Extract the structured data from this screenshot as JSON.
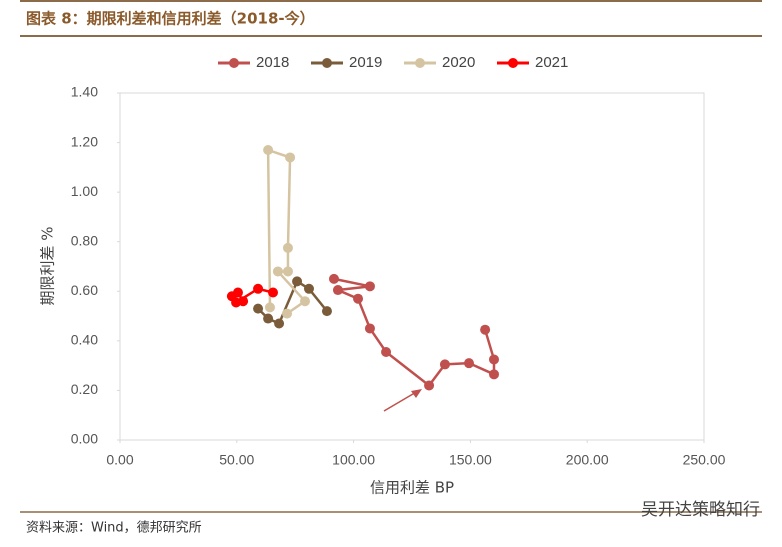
{
  "chart_data": {
    "type": "line",
    "title": "图表 8：期限利差和信用利差（2018-今）",
    "xlabel": "信用利差 BP",
    "ylabel": "期限利差 %",
    "xlim": [
      0,
      250
    ],
    "xticks": [
      {
        "value": 0,
        "label": "0.00"
      },
      {
        "value": 50,
        "label": "50.00"
      },
      {
        "value": 100,
        "label": "100.00"
      },
      {
        "value": 150,
        "label": "150.00"
      },
      {
        "value": 200,
        "label": "200.00"
      },
      {
        "value": 250,
        "label": "250.00"
      }
    ],
    "ylim": [
      0,
      1.4
    ],
    "yticks": [
      {
        "value": 0,
        "label": "0.00"
      },
      {
        "value": 0.2,
        "label": "0.20"
      },
      {
        "value": 0.4,
        "label": "0.40"
      },
      {
        "value": 0.6,
        "label": "0.60"
      },
      {
        "value": 0.8,
        "label": "0.80"
      },
      {
        "value": 1.0,
        "label": "1.00"
      },
      {
        "value": 1.2,
        "label": "1.20"
      },
      {
        "value": 1.4,
        "label": "1.40"
      }
    ],
    "series": [
      {
        "name": "2018",
        "color": "#c0504d",
        "x": [
          91.6,
          107.0,
          93.3,
          101.9,
          107.0,
          113.9,
          132.3,
          139.1,
          149.4,
          160.1,
          160.1,
          156.3
        ],
        "y": [
          0.65,
          0.62,
          0.605,
          0.57,
          0.45,
          0.355,
          0.22,
          0.305,
          0.31,
          0.265,
          0.325,
          0.445
        ]
      },
      {
        "name": "2019",
        "color": "#7a5c3a",
        "x": [
          59.1,
          63.4,
          68.1,
          75.8,
          80.9,
          88.6
        ],
        "y": [
          0.53,
          0.49,
          0.47,
          0.64,
          0.61,
          0.52
        ]
      },
      {
        "name": "2020",
        "color": "#d5c4a1",
        "x": [
          64.2,
          63.4,
          72.8,
          71.9,
          71.9,
          67.6,
          79.2,
          71.5
        ],
        "y": [
          0.535,
          1.17,
          1.14,
          0.775,
          0.68,
          0.68,
          0.56,
          0.51
        ]
      },
      {
        "name": "2021",
        "color": "#ff0000",
        "x": [
          47.9,
          50.5,
          52.7,
          49.7,
          59.1,
          65.5
        ],
        "y": [
          0.58,
          0.595,
          0.56,
          0.555,
          0.61,
          0.595
        ]
      }
    ]
  },
  "footer": {
    "source": "资料来源：Wind，德邦研究所",
    "watermark": "吴开达策略知行"
  }
}
